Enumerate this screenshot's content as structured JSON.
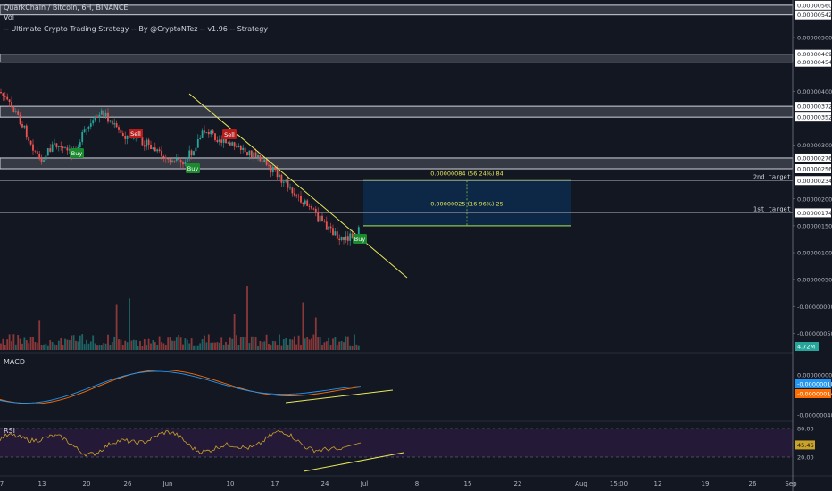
{
  "header": {
    "title": "QuarkChain / Bitcoin, 6H, BINANCE",
    "vol_label": "Vol",
    "strategy": "-- Ultimate Crypto Trading Strategy -- By @CryptoNTez -- v1.96 -- Strategy"
  },
  "colors": {
    "background": "#131722",
    "bull": "#26a69a",
    "bear": "#ef5350",
    "trendline": "#e8e85a",
    "zone": "#d1d4dc",
    "target_box": "#0c2a4a",
    "target_line": "#8bc34a",
    "macd_line": "#2196f3",
    "signal_line": "#ff6d00",
    "rsi_line": "#c9a227",
    "rsi_band": "#2a1a3e"
  },
  "chart_data": {
    "type": "candlestick",
    "symbol": "QuarkChain / Bitcoin",
    "timeframe": "6H",
    "exchange": "BINANCE",
    "x_tick_labels": [
      "7",
      "13",
      "20",
      "26",
      "Jun",
      "10",
      "17",
      "24",
      "Jul",
      "8",
      "15",
      "22",
      "Aug",
      "15:00",
      "12",
      "19",
      "26",
      "Sep"
    ],
    "price_axis_labels": [
      "0.00000560",
      "0.00000542",
      "0.00000500",
      "0.00000469",
      "0.00000454",
      "0.00000400",
      "0.00000372",
      "0.00000352",
      "0.00000300",
      "0.00000276",
      "0.00000256",
      "0.00000234",
      "0.00000200",
      "0.00000174",
      "0.00000150",
      "0.00000100",
      "0.00000050",
      "-0.00000000",
      "-0.00000050"
    ],
    "ylim": [
      -6e-07,
      5.6e-06
    ],
    "volume_label": "4.72M",
    "close_approx": 1.5e-06,
    "resistance_zones": [
      {
        "low": 5.42e-06,
        "high": 5.6e-06
      },
      {
        "low": 4.54e-06,
        "high": 4.69e-06
      },
      {
        "low": 3.52e-06,
        "high": 3.72e-06
      },
      {
        "low": 2.56e-06,
        "high": 2.76e-06
      }
    ],
    "targets": [
      {
        "label": "2nd target",
        "price": 2.34e-06,
        "measure": "0.00000084 (56.24%) 84"
      },
      {
        "label": "1st target",
        "price": 1.74e-06,
        "measure": "0.00000025 (16.96%) 25"
      }
    ],
    "signals": [
      {
        "label": "Buy",
        "type": "buy"
      },
      {
        "label": "Sell",
        "type": "sell"
      },
      {
        "label": "Sell",
        "type": "sell"
      },
      {
        "label": "Buy",
        "type": "buy"
      },
      {
        "label": "Buy",
        "type": "buy"
      }
    ],
    "macd": {
      "label": "MACD",
      "axis_labels": [
        "0.00000000",
        "-0.00000018",
        "-0.00000014",
        "-0.00000040"
      ],
      "macd_value": "-0.00000018",
      "signal_value": "-0.00000014"
    },
    "rsi": {
      "label": "RSI",
      "axis_labels": [
        "80.00",
        "45.46",
        "20.00"
      ],
      "value": 45.46,
      "upper": 80,
      "lower": 20
    }
  }
}
